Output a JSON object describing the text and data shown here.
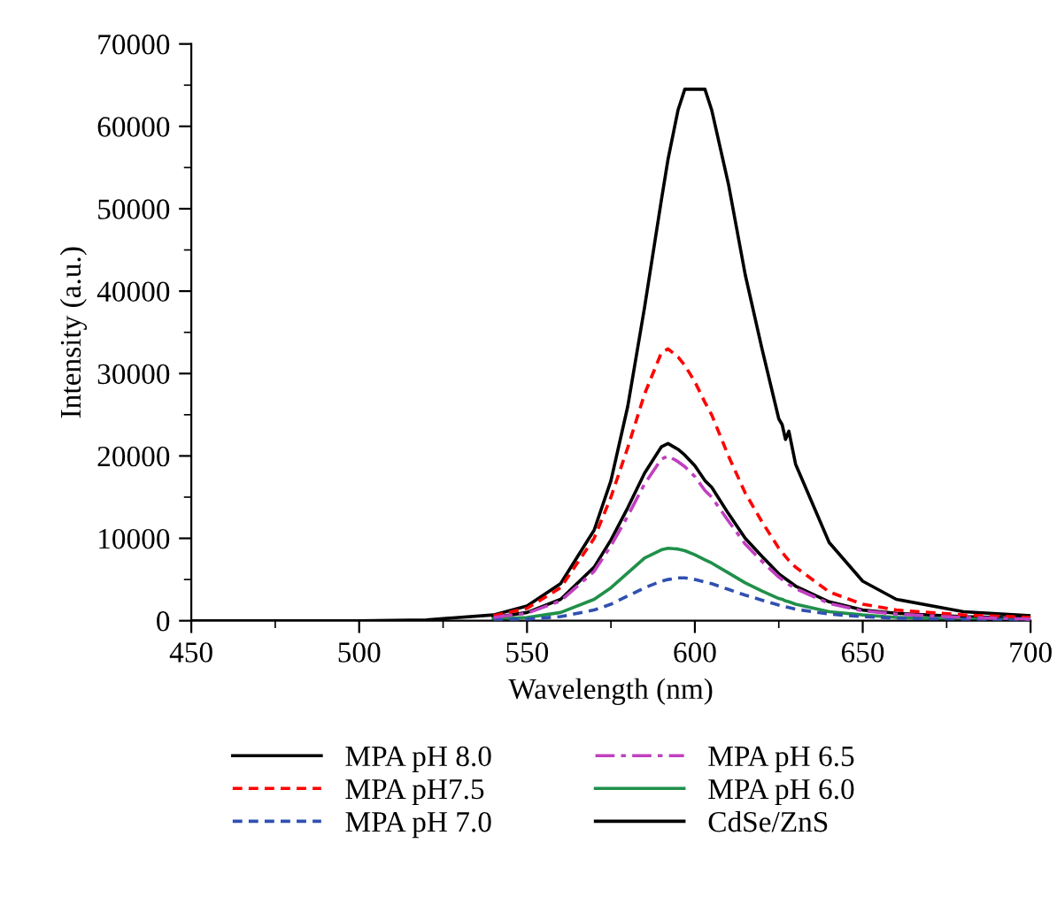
{
  "chart_data": {
    "type": "line",
    "xlabel": "Wavelength (nm)",
    "ylabel": "Intensity (a.u.)",
    "x": [
      540,
      550,
      560,
      570,
      575,
      580,
      585,
      590,
      592,
      595,
      597,
      600,
      603,
      605,
      610,
      615,
      620,
      625,
      626,
      627,
      628,
      630,
      640,
      650,
      660,
      680,
      700
    ],
    "series": [
      {
        "name": "MPA pH 8.0",
        "color": "#000000",
        "line_style": "solid",
        "values": [
          400,
          1000,
          2600,
          6500,
          9800,
          13700,
          17900,
          21100,
          21500,
          20800,
          20100,
          18800,
          17000,
          16200,
          13000,
          10000,
          7800,
          5700,
          5400,
          5100,
          4800,
          4200,
          2300,
          1300,
          900,
          500,
          300
        ]
      },
      {
        "name": "MPA pH7.5",
        "color": "#ff0000",
        "line_style": "dashed",
        "values": [
          600,
          1500,
          4000,
          10000,
          15000,
          21000,
          27500,
          32500,
          33000,
          32000,
          31000,
          29000,
          26500,
          25000,
          20000,
          15500,
          12000,
          8800,
          8300,
          7800,
          7300,
          6500,
          3500,
          2000,
          1300,
          700,
          400
        ]
      },
      {
        "name": "MPA pH 7.0",
        "color": "#3050b0",
        "line_style": "dashed",
        "values": [
          100,
          200,
          500,
          1300,
          2000,
          3000,
          4000,
          4800,
          5000,
          5200,
          5200,
          5000,
          4700,
          4500,
          3800,
          3100,
          2500,
          1900,
          1800,
          1700,
          1600,
          1400,
          800,
          500,
          300,
          200,
          100
        ]
      },
      {
        "name": "MPA pH 6.5",
        "color": "#c040c0",
        "line_style": "dashdot",
        "values": [
          400,
          900,
          2400,
          6000,
          9100,
          12700,
          16600,
          19600,
          20000,
          19300,
          18700,
          17500,
          15800,
          15000,
          12100,
          9300,
          7200,
          5300,
          5000,
          4700,
          4400,
          3900,
          2100,
          1200,
          800,
          400,
          200
        ]
      },
      {
        "name": "MPA pH 6.0",
        "color": "#20904a",
        "line_style": "solid",
        "values": [
          200,
          400,
          1000,
          2600,
          4000,
          5800,
          7600,
          8600,
          8800,
          8700,
          8500,
          8000,
          7400,
          7000,
          5800,
          4600,
          3600,
          2700,
          2600,
          2400,
          2300,
          2000,
          1100,
          700,
          400,
          200,
          100
        ]
      },
      {
        "name": "CdSe/ZnS",
        "color": "#000000",
        "line_style": "solid",
        "x": [
          450,
          500,
          520,
          540,
          550,
          560,
          570,
          575,
          580,
          585,
          590,
          592,
          595,
          597,
          600,
          603,
          605,
          610,
          615,
          620,
          625,
          626,
          627,
          628,
          630,
          640,
          650,
          660,
          680,
          700
        ],
        "values": [
          0,
          0,
          100,
          700,
          1800,
          4500,
          11000,
          17000,
          26000,
          38000,
          51000,
          56000,
          62000,
          64500,
          64500,
          64500,
          62000,
          53000,
          42000,
          33000,
          24500,
          23800,
          22000,
          23000,
          19000,
          9500,
          4800,
          2600,
          1100,
          600
        ]
      }
    ],
    "xlim": [
      450,
      700
    ],
    "xticks": [
      450,
      {
        "value": 475,
        "label": null
      },
      500,
      {
        "value": 525,
        "label": null
      },
      550,
      {
        "value": 575,
        "label": null
      },
      600,
      {
        "value": 625,
        "label": null
      },
      650,
      {
        "value": 675,
        "label": null
      },
      700
    ],
    "ylim": [
      0,
      70000
    ],
    "yticks": [
      0,
      {
        "value": 5000,
        "label": null
      },
      10000,
      {
        "value": 15000,
        "label": null
      },
      20000,
      {
        "value": 25000,
        "label": null
      },
      30000,
      {
        "value": 35000,
        "label": null
      },
      40000,
      {
        "value": 45000,
        "label": null
      },
      50000,
      {
        "value": 55000,
        "label": null
      },
      60000,
      {
        "value": 65000,
        "label": null
      },
      70000
    ],
    "legend": "bottom",
    "grid": false,
    "marker": "none"
  }
}
